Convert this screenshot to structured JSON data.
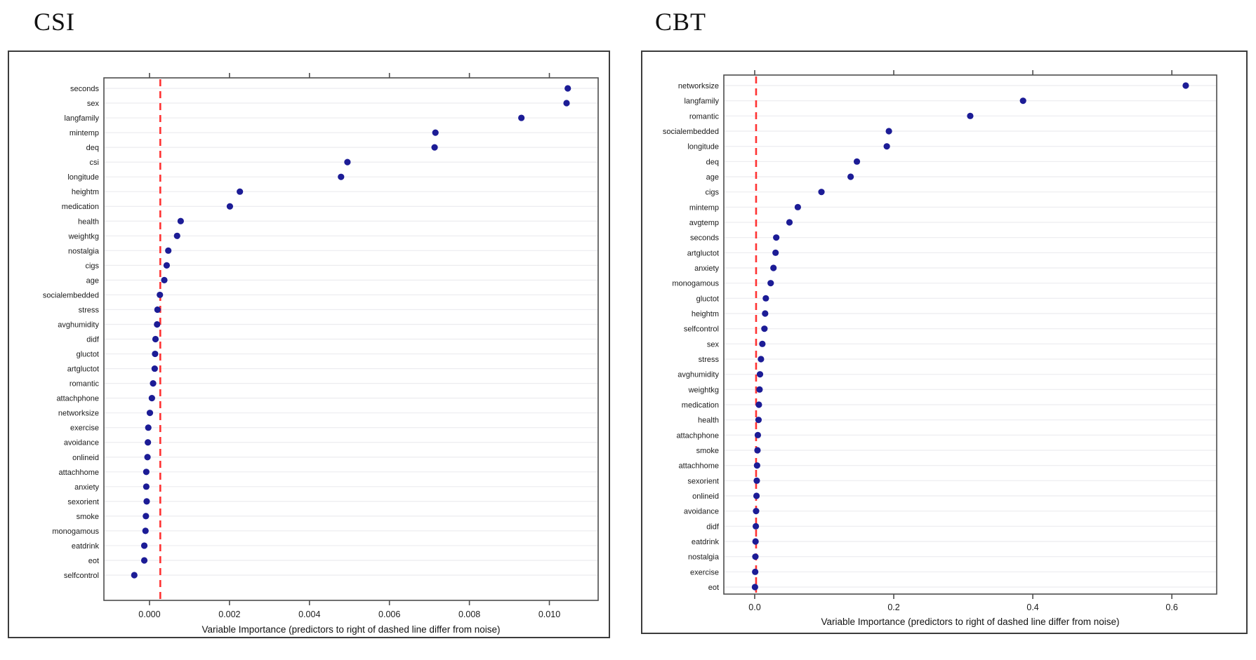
{
  "page": {
    "background": "#ffffff"
  },
  "chart_data": [
    {
      "type": "scatter",
      "variant": "dotplot-horizontal",
      "title": "CSI",
      "xlabel": "Variable Importance (predictors to right of dashed line differ from noise)",
      "ylabel": "",
      "legend": "none",
      "grid": "horizontal-per-row",
      "dot_color": "#1c1c96",
      "threshold_color": "#ff3333",
      "threshold_value": 0.00027,
      "xlim": [
        -0.00114,
        0.01122
      ],
      "xticks": [
        0.0,
        0.002,
        0.004,
        0.006,
        0.008,
        0.01
      ],
      "xtick_labels": [
        "0.000",
        "0.002",
        "0.004",
        "0.006",
        "0.008",
        "0.010"
      ],
      "categories": [
        "seconds",
        "sex",
        "langfamily",
        "mintemp",
        "deq",
        "csi",
        "longitude",
        "heightm",
        "medication",
        "health",
        "weightkg",
        "nostalgia",
        "cigs",
        "age",
        "socialembedded",
        "stress",
        "avghumidity",
        "didf",
        "gluctot",
        "artgluctot",
        "romantic",
        "attachphone",
        "networksize",
        "exercise",
        "avoidance",
        "onlineid",
        "attachhome",
        "anxiety",
        "sexorient",
        "smoke",
        "monogamous",
        "eatdrink",
        "eot",
        "selfcontrol"
      ],
      "values": [
        0.01046,
        0.01043,
        0.0093,
        0.00715,
        0.00713,
        0.00495,
        0.00479,
        0.00226,
        0.00201,
        0.00078,
        0.00069,
        0.00047,
        0.00043,
        0.00037,
        0.00026,
        0.0002,
        0.00019,
        0.00015,
        0.00014,
        0.00013,
        9e-05,
        6e-05,
        1e-05,
        -3e-05,
        -4e-05,
        -5e-05,
        -8e-05,
        -8e-05,
        -7e-05,
        -9e-05,
        -0.0001,
        -0.00013,
        -0.00013,
        -0.00038
      ]
    },
    {
      "type": "scatter",
      "variant": "dotplot-horizontal",
      "title": "CBT",
      "xlabel": "Variable Importance (predictors to right of dashed line differ from noise)",
      "ylabel": "",
      "legend": "none",
      "grid": "horizontal-per-row",
      "dot_color": "#1c1c96",
      "threshold_color": "#ff3333",
      "threshold_value": 0.002,
      "xlim": [
        -0.0444,
        0.6645
      ],
      "xticks": [
        0.0,
        0.2,
        0.4,
        0.6
      ],
      "xtick_labels": [
        "0.0",
        "0.2",
        "0.4",
        "0.6"
      ],
      "categories": [
        "networksize",
        "langfamily",
        "romantic",
        "socialembedded",
        "longitude",
        "deq",
        "age",
        "cigs",
        "mintemp",
        "avgtemp",
        "seconds",
        "artgluctot",
        "anxiety",
        "monogamous",
        "gluctot",
        "heightm",
        "selfcontrol",
        "sex",
        "stress",
        "avghumidity",
        "weightkg",
        "medication",
        "health",
        "attachphone",
        "smoke",
        "attachhome",
        "sexorient",
        "onlineid",
        "avoidance",
        "didf",
        "eatdrink",
        "nostalgia",
        "exercise",
        "eot"
      ],
      "values": [
        0.62,
        0.386,
        0.31,
        0.193,
        0.19,
        0.147,
        0.138,
        0.096,
        0.062,
        0.05,
        0.031,
        0.03,
        0.027,
        0.023,
        0.016,
        0.015,
        0.014,
        0.011,
        0.009,
        0.0076,
        0.007,
        0.006,
        0.0055,
        0.0045,
        0.004,
        0.0034,
        0.003,
        0.0026,
        0.002,
        0.0016,
        0.0012,
        0.001,
        0.0007,
        0.0004
      ]
    }
  ]
}
